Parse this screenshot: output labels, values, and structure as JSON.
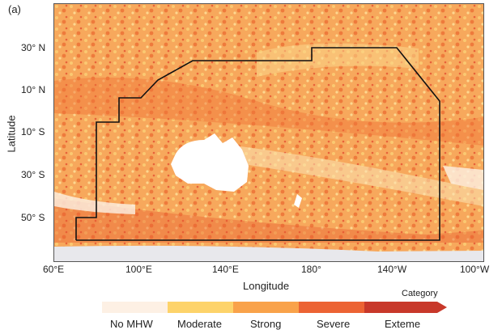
{
  "panel_label": "(a)",
  "y_axis_title": "Latitude",
  "x_axis_title": "Longitude",
  "lat_ticks": [
    "30° N",
    "10° N",
    "10° S",
    "30° S",
    "50° S"
  ],
  "lon_ticks": [
    "60°E",
    "100°E",
    "140°E",
    "180°",
    "140°W",
    "100°W"
  ],
  "legend": {
    "title": "Category",
    "categories": [
      {
        "label": "No MHW",
        "color": "#fdf0e4"
      },
      {
        "label": "Moderate",
        "color": "#fdd36a"
      },
      {
        "label": "Strong",
        "color": "#f9a24a"
      },
      {
        "label": "Severe",
        "color": "#ec6333"
      },
      {
        "label": "Exteme",
        "color": "#c8382a"
      }
    ]
  },
  "colors": {
    "land": "#ffffff",
    "ice_edge": "#e8e8ec",
    "boundary": "#111111"
  }
}
